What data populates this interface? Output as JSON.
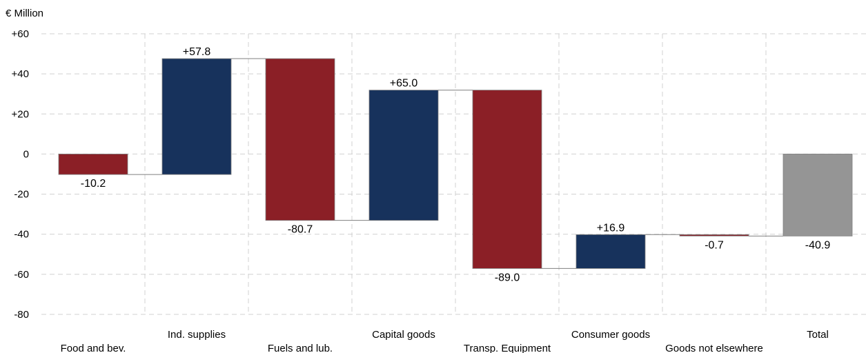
{
  "chart_data": {
    "type": "bar",
    "subtype": "waterfall",
    "unit_label": "€ Million",
    "ylim": [
      -80,
      60
    ],
    "yticks": [
      "+60",
      "+40",
      "+20",
      "0",
      "-20",
      "-40",
      "-60",
      "-80"
    ],
    "ytick_values": [
      60,
      40,
      20,
      0,
      -20,
      -40,
      -60,
      -80
    ],
    "grid": true,
    "categories": [
      "Food and bev.",
      "Ind. supplies",
      "Fuels and lub.",
      "Capital goods",
      "Transp. Equipment",
      "Consumer goods",
      "Goods not elsewhere",
      "Total"
    ],
    "values": [
      -10.2,
      57.8,
      -80.7,
      65.0,
      -89.0,
      16.9,
      -0.7,
      -40.9
    ],
    "value_labels": [
      "-10.2",
      "+57.8",
      "-80.7",
      "+65.0",
      "-89.0",
      "+16.9",
      "-0.7",
      "-40.9"
    ],
    "colors": {
      "increase": "#17325c",
      "decrease": "#8b1f26",
      "total": "#959595",
      "grid": "#d0d0d0",
      "connector": "#7f7f7f"
    }
  }
}
